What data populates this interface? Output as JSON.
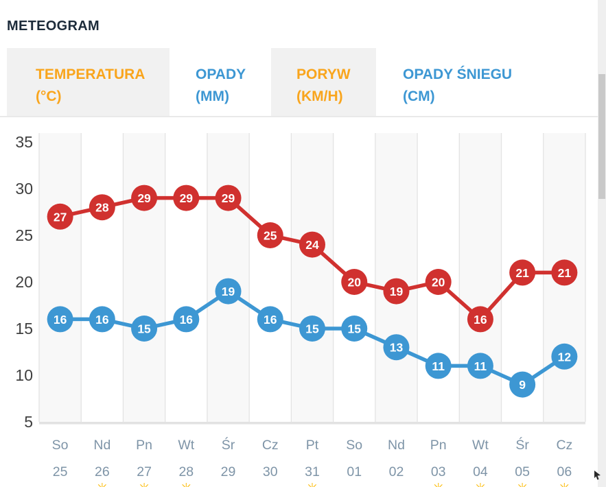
{
  "page": {
    "title": "METEOGRAM"
  },
  "tabs": [
    {
      "label": "TEMPERATURA",
      "unit": "(°C)",
      "active": true,
      "text_color": "#f9a51d"
    },
    {
      "label": "OPADY",
      "unit": "(MM)",
      "active": false,
      "text_color": "#3d97d3"
    },
    {
      "label": "PORYW",
      "unit": "(KM/H)",
      "active": true,
      "text_color": "#f9a51d"
    },
    {
      "label": "OPADY ŚNIEGU",
      "unit": "(CM)",
      "active": false,
      "text_color": "#3d97d3"
    }
  ],
  "chart_data": {
    "type": "line",
    "categories_day": [
      "So",
      "Nd",
      "Pn",
      "Wt",
      "Śr",
      "Cz",
      "Pt",
      "So",
      "Nd",
      "Pn",
      "Wt",
      "Śr",
      "Cz"
    ],
    "categories_date": [
      "25",
      "26",
      "27",
      "28",
      "29",
      "30",
      "31",
      "01",
      "02",
      "03",
      "04",
      "05",
      "06"
    ],
    "series": [
      {
        "name": "red-series",
        "color": "#d0312f",
        "values": [
          27,
          28,
          29,
          29,
          29,
          25,
          24,
          20,
          19,
          20,
          16,
          21,
          21
        ]
      },
      {
        "name": "blue-series",
        "color": "#3d97d3",
        "values": [
          16,
          16,
          15,
          16,
          19,
          16,
          15,
          15,
          13,
          11,
          11,
          9,
          12
        ]
      }
    ],
    "ylim": [
      5,
      35
    ],
    "yticks": [
      5,
      10,
      15,
      20,
      25,
      30,
      35
    ],
    "grid": true,
    "legend": "none",
    "point_label_style": "value inside colored circle marker",
    "icon_columns": [
      1,
      2,
      3,
      6,
      9,
      10,
      11,
      12
    ],
    "icon": {
      "name": "weather-icon-partial",
      "glyph": "✳",
      "color": "#fcbf17"
    }
  },
  "theme": {
    "title_color": "#1c2b3a",
    "red": "#d0312f",
    "blue": "#3d97d3",
    "orange": "#f9a51d",
    "ytick_color": "#3f3f3f",
    "xtick_color": "#7e94a7",
    "gridline": "#e3e3e3",
    "stripe": "#f8f8f8",
    "axis_band": "#e2e2e2",
    "tab_active_bg": "#f1f1f1"
  }
}
